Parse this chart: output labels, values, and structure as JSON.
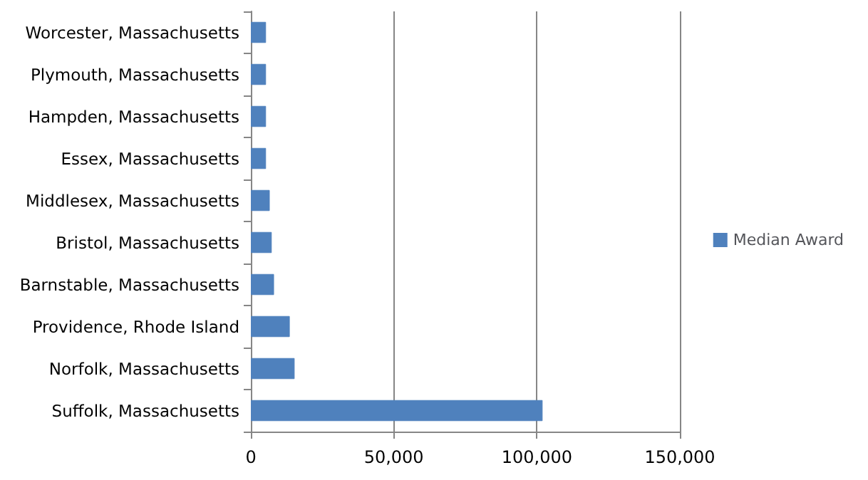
{
  "chart_data": {
    "type": "bar",
    "orientation": "horizontal",
    "categories": [
      "Worcester, Massachusetts",
      "Plymouth, Massachusetts",
      "Hampden, Massachusetts",
      "Essex, Massachusetts",
      "Middlesex, Massachusetts",
      "Bristol, Massachusetts",
      "Barnstable, Massachusetts",
      "Providence, Rhode Island",
      "Norfolk, Massachusetts",
      "Suffolk, Massachusetts"
    ],
    "series": [
      {
        "name": "Median Award",
        "color": "#4f81bd",
        "values": [
          5300,
          5300,
          5300,
          5300,
          6600,
          7300,
          8100,
          13600,
          15300,
          102000
        ]
      }
    ],
    "xlim": [
      0,
      150000
    ],
    "xticks": [
      0,
      {
        "value": 50000,
        "label": "50,000"
      },
      {
        "value": 100000,
        "label": "100,000"
      },
      {
        "value": 150000,
        "label": "150,000"
      }
    ],
    "grid": "x",
    "legend": "right"
  }
}
